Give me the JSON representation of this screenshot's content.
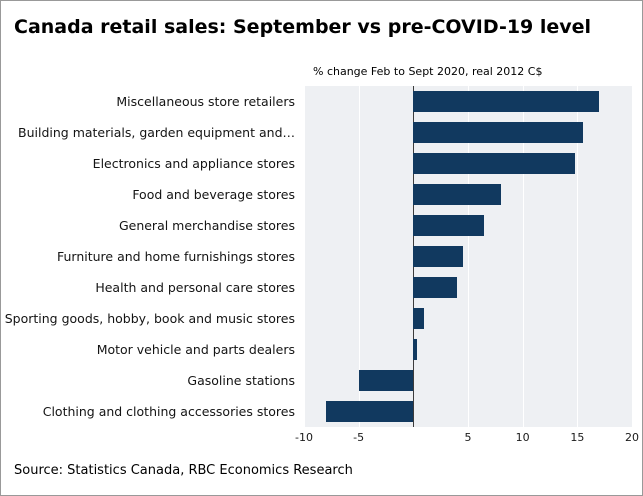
{
  "title": "Canada retail sales: September vs pre-COVID-19 level",
  "subtitle": "% change Feb to Sept 2020, real 2012 C$",
  "source": "Source: Statistics Canada, RBC Economics Research",
  "chart_data": {
    "type": "bar",
    "orientation": "horizontal",
    "title": "Canada retail sales: September vs pre-COVID-19 level",
    "subtitle": "% change Feb to Sept 2020, real 2012 C$",
    "categories": [
      "Miscellaneous store retailers",
      "Building materials, garden equipment and…",
      "Electronics and appliance stores",
      "Food and beverage stores",
      "General merchandise stores",
      "Furniture and home furnishings stores",
      "Health and personal care stores",
      "Sporting goods, hobby, book and music stores",
      "Motor vehicle and parts dealers",
      "Gasoline stations",
      "Clothing and clothing accessories stores"
    ],
    "values": [
      17,
      15.5,
      14.8,
      8,
      6.5,
      4.5,
      4,
      1,
      0.3,
      -5,
      -8
    ],
    "xlabel": "",
    "ylabel": "",
    "xlim": [
      -10,
      20
    ],
    "xticks": [
      -10,
      -5,
      5,
      10,
      15,
      20
    ],
    "bar_color": "#11395f",
    "plot_bg": "#eef0f3",
    "zero_line_color": "#3c3c3c",
    "grid": true,
    "legend": "none"
  }
}
